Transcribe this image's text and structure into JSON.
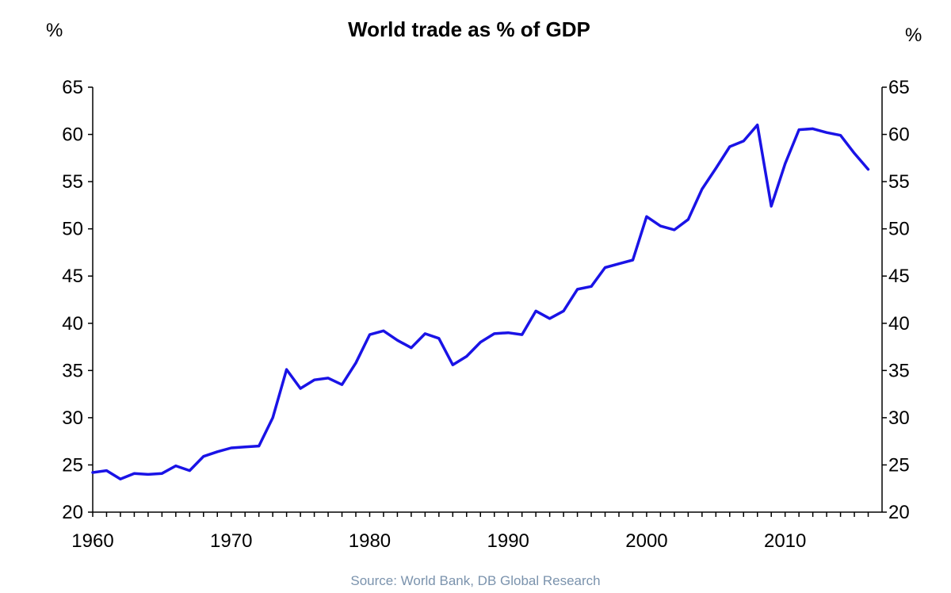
{
  "chart_data": {
    "type": "line",
    "title": "World trade as % of GDP",
    "left_unit": "%",
    "right_unit": "%",
    "source": "Source: World Bank, DB Global Research",
    "xlim": [
      1960,
      2017
    ],
    "ylim": [
      20,
      65
    ],
    "x_ticks": [
      1960,
      1970,
      1980,
      1990,
      2000,
      2010
    ],
    "y_ticks": [
      20,
      25,
      30,
      35,
      40,
      45,
      50,
      55,
      60,
      65
    ],
    "grid": false,
    "line_color": "#1a13e6",
    "source_color": "#7b93ad",
    "series": [
      {
        "x": [
          1960,
          1961,
          1962,
          1963,
          1964,
          1965,
          1966,
          1967,
          1968,
          1969,
          1970,
          1971,
          1972,
          1973,
          1974,
          1975,
          1976,
          1977,
          1978,
          1979,
          1980,
          1981,
          1982,
          1983,
          1984,
          1985,
          1986,
          1987,
          1988,
          1989,
          1990,
          1991,
          1992,
          1993,
          1994,
          1995,
          1996,
          1997,
          1998,
          1999,
          2000,
          2001,
          2002,
          2003,
          2004,
          2005,
          2006,
          2007,
          2008,
          2009,
          2010,
          2011,
          2012,
          2013,
          2014,
          2015,
          2016
        ],
        "values": [
          24.2,
          24.4,
          23.5,
          24.1,
          24.0,
          24.1,
          24.9,
          24.4,
          25.9,
          26.4,
          26.8,
          26.9,
          27.0,
          30.0,
          35.1,
          33.1,
          34.0,
          34.2,
          33.5,
          35.8,
          38.8,
          39.2,
          38.2,
          37.4,
          38.9,
          38.4,
          35.6,
          36.5,
          38.0,
          38.9,
          39.0,
          38.8,
          41.3,
          40.5,
          41.3,
          43.6,
          43.9,
          45.9,
          46.3,
          46.7,
          51.3,
          50.3,
          49.9,
          51.0,
          54.2,
          56.4,
          58.7,
          59.3,
          61.0,
          52.4,
          56.9,
          60.5,
          60.6,
          60.2,
          59.9,
          58.0,
          56.3
        ]
      }
    ]
  }
}
